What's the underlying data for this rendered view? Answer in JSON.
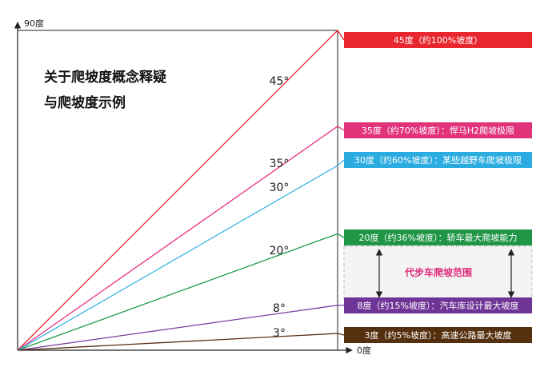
{
  "title": {
    "line1": "关于爬坡度概念释疑",
    "line2": "与爬坡度示例"
  },
  "axis": {
    "y_label": "90度",
    "x_label": "0度"
  },
  "slopes": [
    {
      "id": "45",
      "angle": 45,
      "label": "45°",
      "color": "#e8262e",
      "box": "45度（约100%坡度）",
      "box_color": "#e8262e"
    },
    {
      "id": "35",
      "angle": 35,
      "label": "35°",
      "color": "#e63384",
      "box": "35度（约70%坡度）：悍马H2爬坡极限",
      "box_color": "#e0337a"
    },
    {
      "id": "30",
      "angle": 30,
      "label": "30°",
      "color": "#3cb4e3",
      "box": "30度（约60%坡度）：某些越野车爬坡极限",
      "box_color": "#2aace0"
    },
    {
      "id": "20",
      "angle": 20,
      "label": "20°",
      "color": "#1f9a4a",
      "box": "20度（约36%坡度）：轿车最大爬坡能力",
      "box_color": "#1f9545"
    },
    {
      "id": "8",
      "angle": 8,
      "label": "8°",
      "color": "#7a3aa0",
      "box": "8度（约15%坡度）：汽车库设计最大坡度",
      "box_color": "#6f3596"
    },
    {
      "id": "3",
      "angle": 3,
      "label": "3°",
      "color": "#5a2e12",
      "box": "3度（约5%坡度）：高速公路最大坡度",
      "box_color": "#55300f"
    }
  ],
  "range": {
    "label": "代步车爬坡范围",
    "fill": "#f4f4f4"
  }
}
